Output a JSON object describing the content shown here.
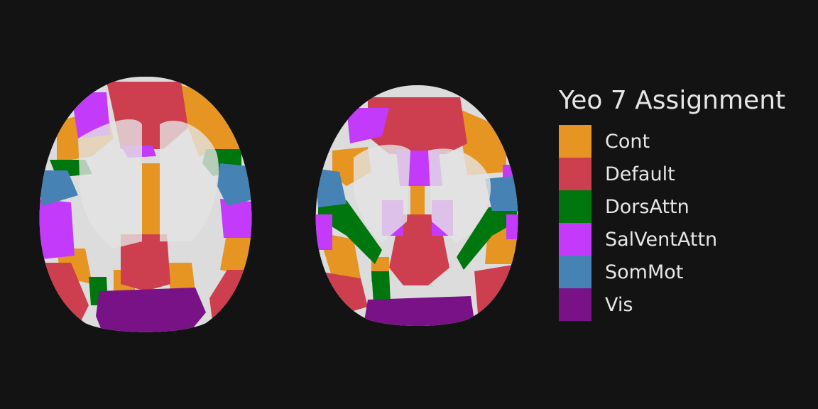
{
  "legend": {
    "title": "Yeo 7 Assignment",
    "items": [
      {
        "label": "Cont",
        "color": "#E69422"
      },
      {
        "label": "Default",
        "color": "#CD3E4E"
      },
      {
        "label": "DorsAttn",
        "color": "#00760E"
      },
      {
        "label": "SalVentAttn",
        "color": "#C43AFA"
      },
      {
        "label": "SomMot",
        "color": "#4682B4"
      },
      {
        "label": "Vis",
        "color": "#781286"
      }
    ]
  },
  "colors": {
    "background": "#131313",
    "white_matter": "#dcdcdc",
    "brain_outline": "#5a5a5a",
    "text": "#e6e6e6"
  }
}
